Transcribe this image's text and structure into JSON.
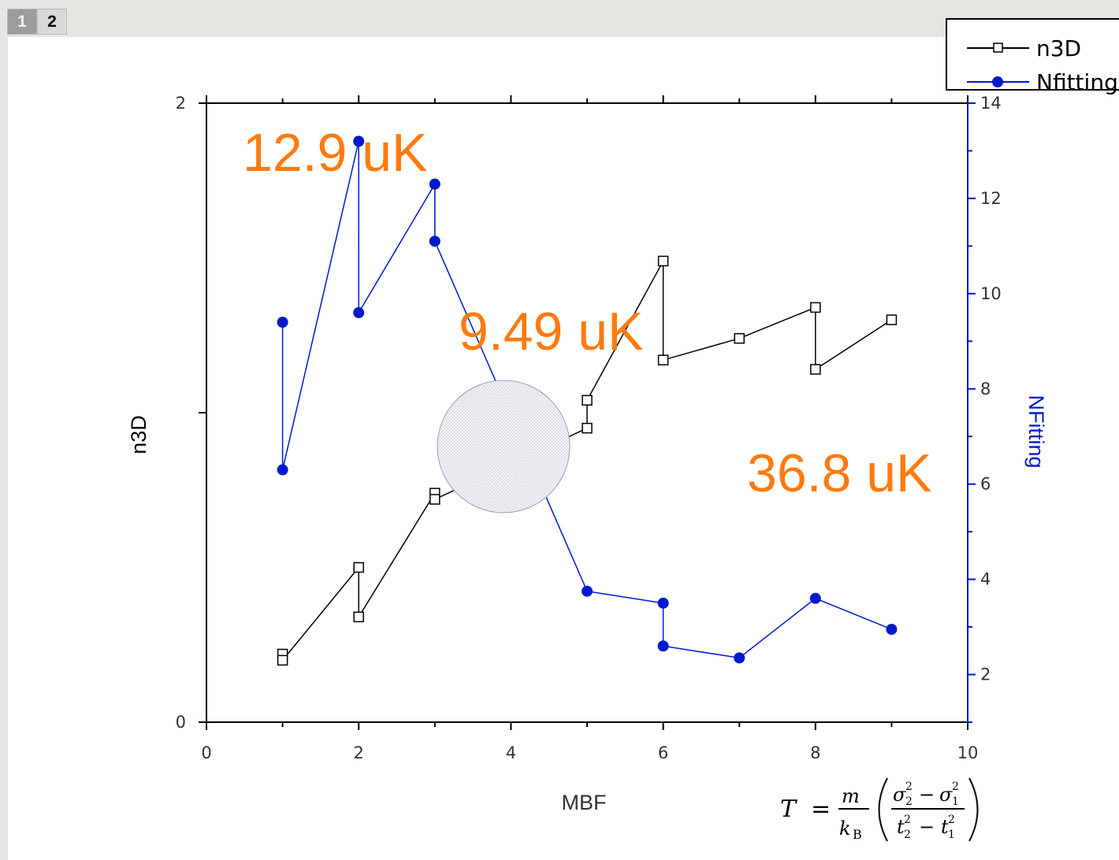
{
  "layer_tabs": [
    "1",
    "2"
  ],
  "colors": {
    "n3d": "#000000",
    "nfitting": "#0019cc",
    "annotation": "#ff7a0f",
    "circle": "#e6e8ee"
  },
  "chart_data": {
    "type": "line",
    "xlabel": "MBF",
    "ylabel_left": "n3D",
    "ylabel_right": "NFitting",
    "xlim": [
      0,
      10
    ],
    "ylim_left": [
      0,
      2
    ],
    "ylim_right": [
      1,
      14
    ],
    "x_ticks": [
      0,
      2,
      4,
      6,
      8,
      10
    ],
    "y_left_ticks": [
      0,
      2
    ],
    "y_right_ticks": [
      2,
      4,
      6,
      8,
      10,
      12,
      14
    ],
    "legend": {
      "position": "top-right",
      "entries": [
        "n3D",
        "Nfitting"
      ]
    },
    "series": [
      {
        "name": "n3D",
        "axis": "left",
        "marker": "open-square",
        "x": [
          1,
          1,
          2,
          2,
          3,
          3,
          5,
          5,
          6,
          6,
          7,
          8,
          8,
          9
        ],
        "y": [
          0.22,
          0.2,
          0.5,
          0.34,
          0.74,
          0.72,
          0.95,
          1.04,
          1.49,
          1.17,
          1.24,
          1.34,
          1.14,
          1.3
        ]
      },
      {
        "name": "Nfitting",
        "axis": "right",
        "marker": "filled-circle",
        "x": [
          1,
          1,
          2,
          2,
          3,
          3,
          5,
          6,
          6,
          7,
          8,
          9
        ],
        "y": [
          9.4,
          6.3,
          13.2,
          9.6,
          12.3,
          11.1,
          3.75,
          3.5,
          2.6,
          2.35,
          3.6,
          2.95
        ]
      }
    ],
    "annotations": [
      "12.9 uK",
      "9.49 uK",
      "36.8 uK"
    ]
  },
  "formula": {
    "lhs": "T",
    "eq": "=",
    "frac_num": "m",
    "frac_den": "k",
    "frac_den_sub": "B",
    "num": {
      "a": "σ",
      "a_sub": "2",
      "a_sup": "2",
      "op": "−",
      "b": "σ",
      "b_sub": "1",
      "b_sup": "2"
    },
    "den": {
      "a": "t",
      "a_sub": "2",
      "a_sup": "2",
      "op": "−",
      "b": "t",
      "b_sub": "1",
      "b_sup": "2"
    }
  }
}
